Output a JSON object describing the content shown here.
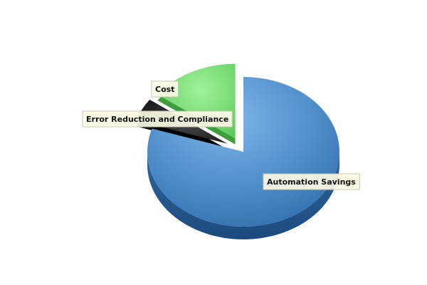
{
  "chart_data": {
    "type": "pie",
    "style": "3d-exploded",
    "legend": "none",
    "slices": [
      {
        "label": "Automation Savings",
        "value": 80,
        "color": "#4a86c5",
        "exploded": false
      },
      {
        "label": "Error Reduction and Compliance",
        "value": 5,
        "color": "#1a1a1a",
        "exploded": true
      },
      {
        "label": "Cost",
        "value": 15,
        "color": "#6fd66f",
        "exploded": true
      }
    ]
  }
}
